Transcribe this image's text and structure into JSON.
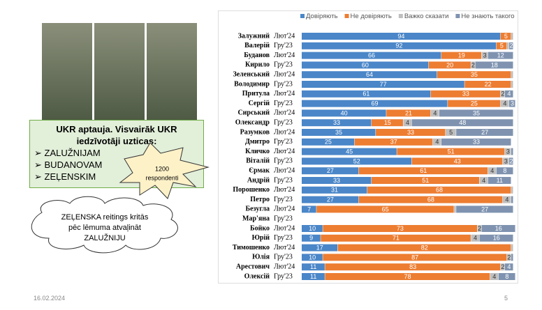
{
  "textbox": {
    "title": "UKR aptauja. Visvairāk UKR iedzīvotāji uzticas:",
    "items": [
      "ZALUŽNIJAM",
      "BUDANOVAM",
      "ZEĻENSKIM"
    ]
  },
  "burst": {
    "lines": [
      "1200",
      "respondenti"
    ]
  },
  "cloud": {
    "lines": [
      "ZEĻENSKA reitings kritās",
      "pēc lēmuma atvaļināt",
      "ZALUŽNIJU"
    ]
  },
  "footer": {
    "date": "16.02.2024",
    "page": "5"
  },
  "chart_data": {
    "type": "stacked-bar-horizontal",
    "categories": [
      "Залужний",
      "Валерій",
      "Буданов",
      "Кирило",
      "Зеленський",
      "Володимир",
      "Притула",
      "Сергій",
      "Сирський",
      "Олександр",
      "Разумков",
      "Дмитро",
      "Кличко",
      "Віталій",
      "Єрмак",
      "Андрій",
      "Порошенко",
      "Петро",
      "Безугла",
      "Мар'яна",
      "Бойко",
      "Юрій",
      "Тимошенко",
      "Юлія",
      "Арестович",
      "Олексій"
    ],
    "periods": [
      "Лют'24",
      "Гру'23",
      "Лют'24",
      "Гру'23",
      "Лют'24",
      "Гру'23",
      "Лют'24",
      "Гру'23",
      "Лют'24",
      "Гру'23",
      "Лют'24",
      "Гру'23",
      "Лют'24",
      "Гру'23",
      "Лют'24",
      "Гру'23",
      "Лют'24",
      "Гру'23",
      "Лют'24",
      "Гру'23",
      "Лют'24",
      "Гру'23",
      "Лют'24",
      "Гру'23",
      "Лют'24",
      "Гру'23"
    ],
    "xlim": [
      0,
      100
    ],
    "series": [
      {
        "name": "Довіряють",
        "color": "#4a86c8",
        "values": [
          94,
          92,
          66,
          60,
          64,
          77,
          61,
          69,
          40,
          33,
          35,
          25,
          45,
          52,
          27,
          33,
          31,
          27,
          7,
          null,
          10,
          9,
          17,
          10,
          11,
          11
        ]
      },
      {
        "name": "Не довіряють",
        "color": "#ed7d31",
        "values": [
          5,
          5,
          19,
          20,
          35,
          22,
          33,
          25,
          21,
          15,
          33,
          37,
          51,
          43,
          61,
          51,
          68,
          68,
          65,
          null,
          73,
          71,
          82,
          87,
          83,
          78
        ]
      },
      {
        "name": "Важко сказати",
        "color": "#bfbfbf",
        "values": [
          1,
          1,
          3,
          2,
          1,
          1,
          2,
          4,
          4,
          4,
          5,
          4,
          3,
          3,
          4,
          4,
          1,
          4,
          1,
          null,
          2,
          4,
          1,
          2,
          2,
          4
        ]
      },
      {
        "name": "Не знають такого",
        "color": "#7f93b0",
        "values": [
          0,
          2,
          12,
          18,
          0,
          0,
          4,
          3,
          35,
          48,
          27,
          33,
          1,
          2,
          8,
          11,
          0,
          1,
          27,
          null,
          16,
          16,
          0,
          1,
          4,
          8
        ]
      }
    ]
  }
}
